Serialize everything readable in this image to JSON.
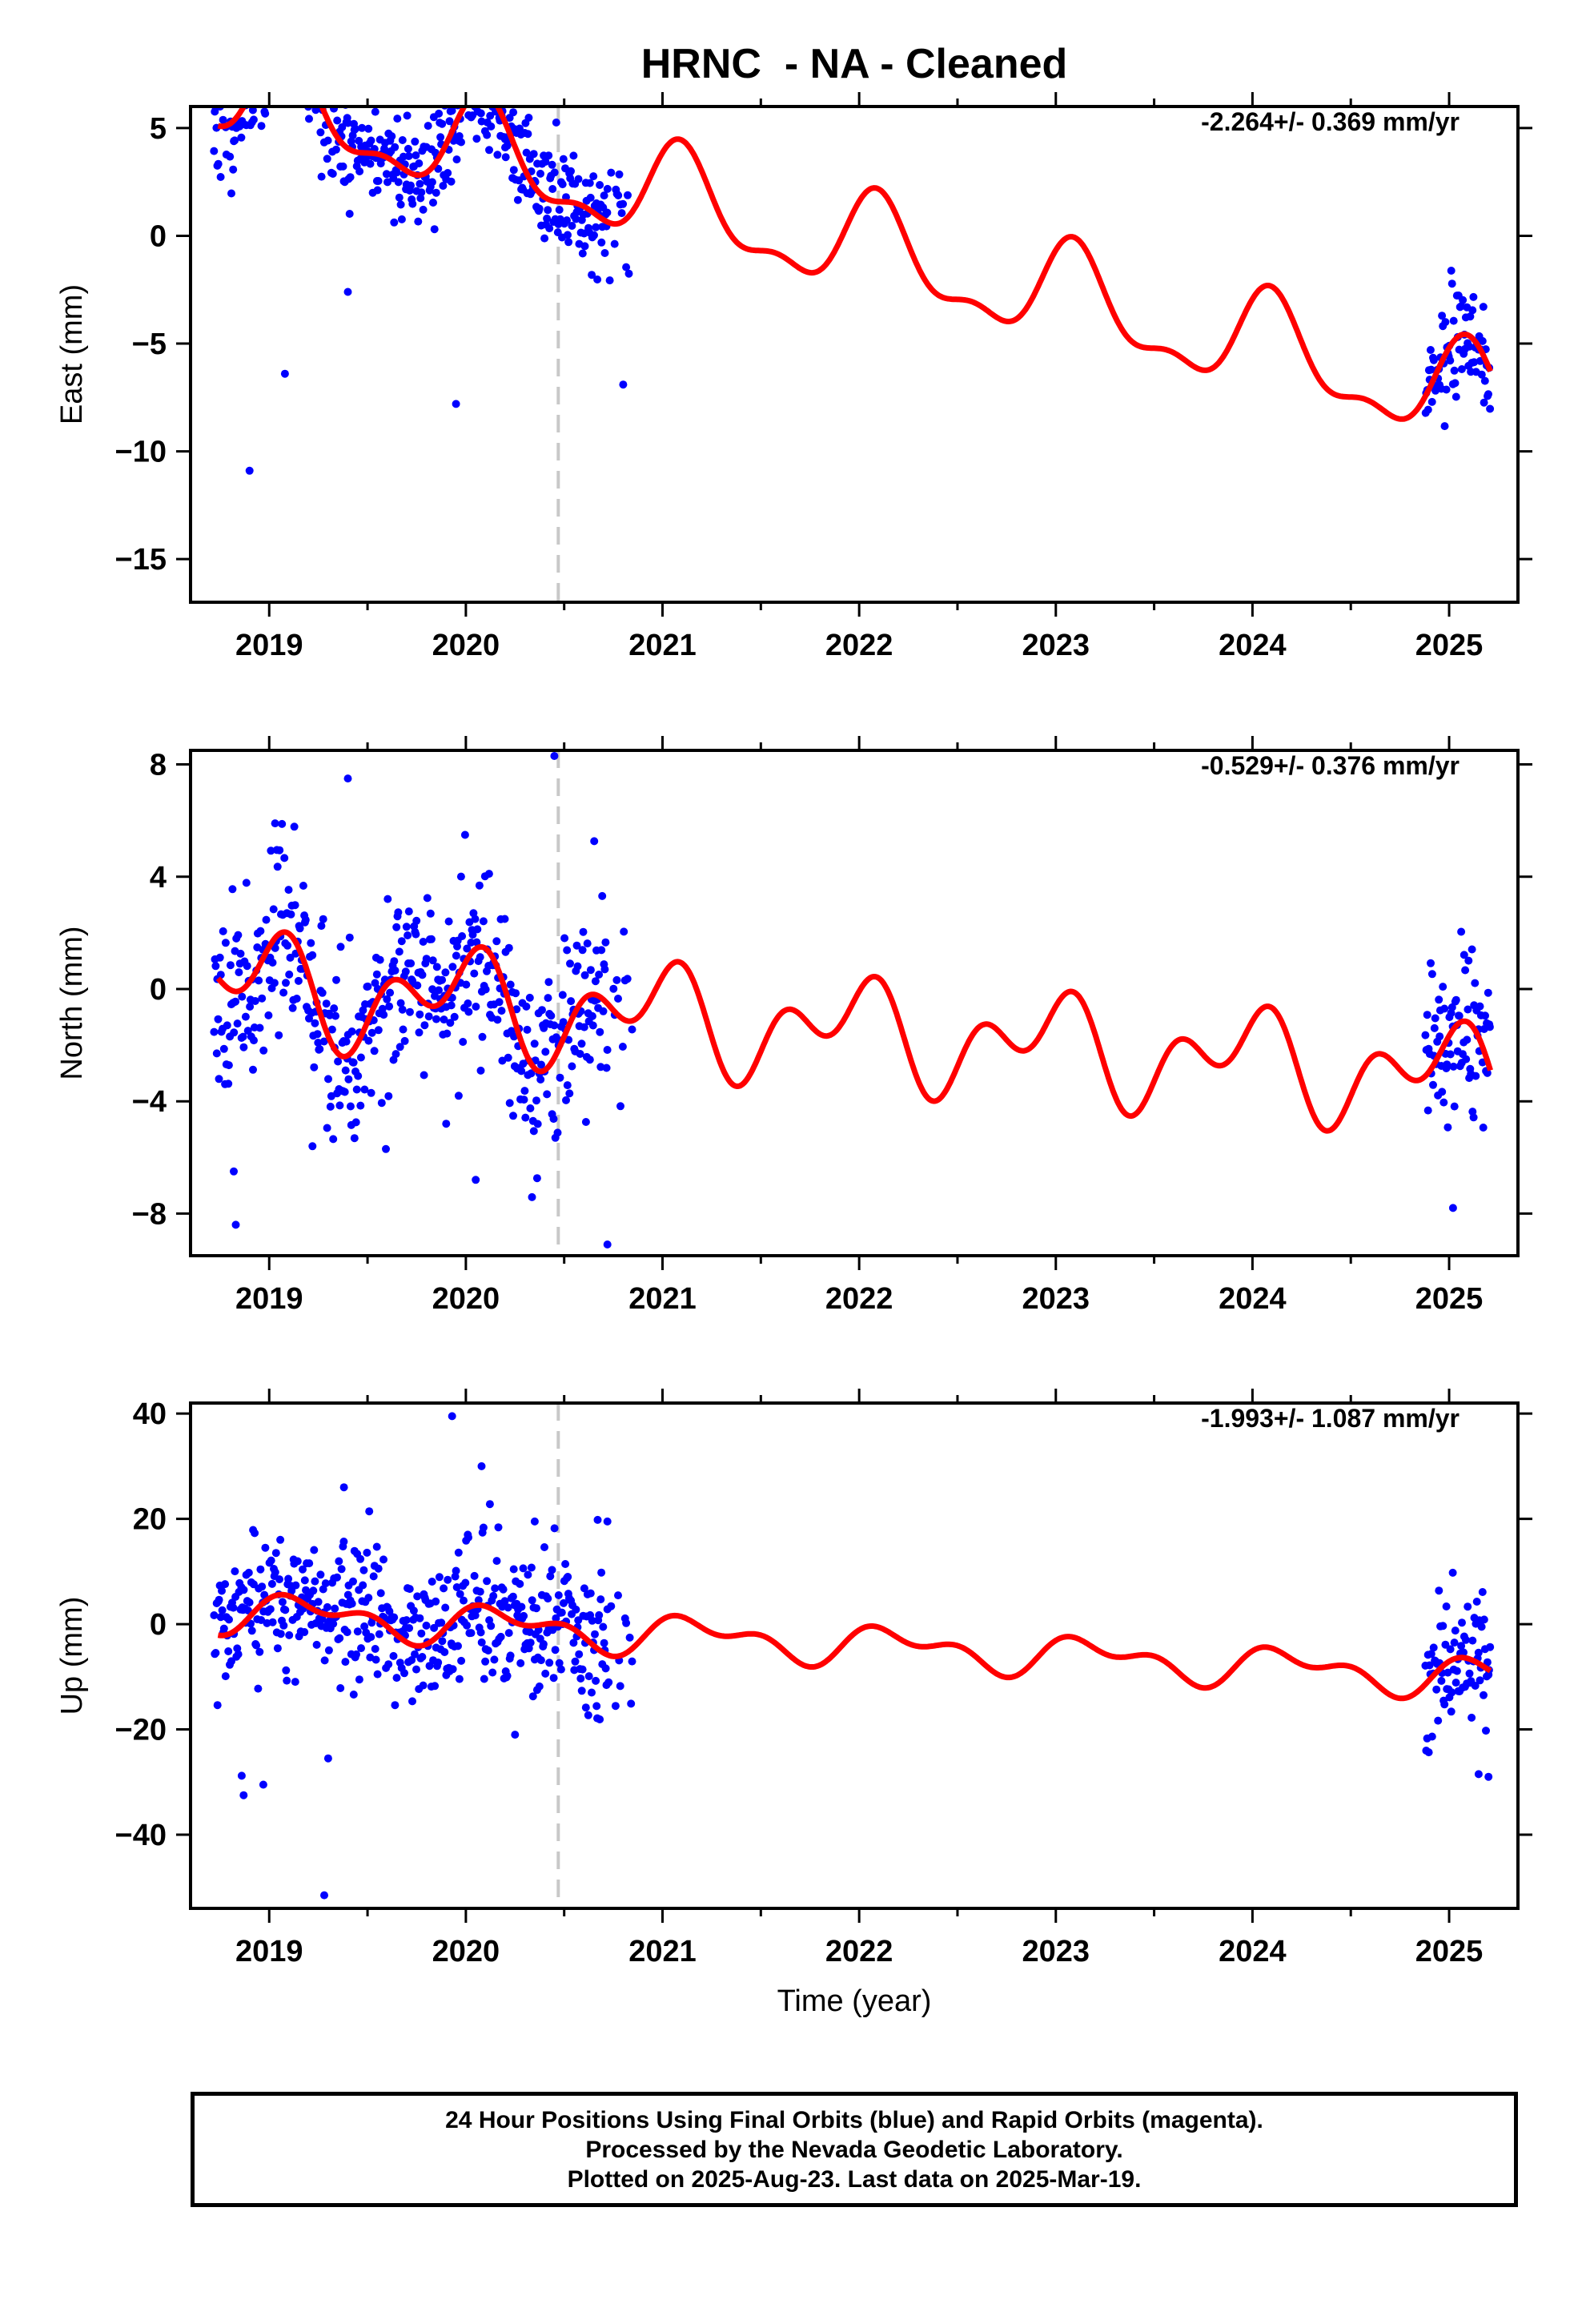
{
  "title": "HRNC  - NA - Cleaned",
  "footer": {
    "line1": "24 Hour Positions Using Final Orbits (blue) and Rapid Orbits (magenta).",
    "line2": "Processed by the Nevada Geodetic Laboratory.",
    "line3": "Plotted on 2025-Aug-23. Last data on 2025-Mar-19."
  },
  "colors": {
    "final_orbits": "#0000ff",
    "model_fit": "#ff0000",
    "event_line": "#c8c8c8"
  },
  "chart_data": [
    {
      "type": "scatter",
      "component": "east",
      "ylabel": "East (mm)",
      "xlabel": "",
      "rate_label": "-2.264+/- 0.369 mm/yr",
      "xlim": [
        2018.6,
        2025.35
      ],
      "ylim": [
        -17,
        6
      ],
      "xticks": [
        "2019",
        "2020",
        "2021",
        "2022",
        "2023",
        "2024",
        "2025"
      ],
      "yticks": [
        {
          "v": 5,
          "t": "5"
        },
        {
          "v": 0,
          "t": "0"
        },
        {
          "v": -5,
          "t": "−5"
        },
        {
          "v": -10,
          "t": "−10"
        },
        {
          "v": -15,
          "t": "−15"
        }
      ],
      "event_line_x": 2020.47,
      "model": {
        "offset": 6.8,
        "rate": -2.264,
        "t0": 2018.74,
        "a1": 2.1,
        "p1": 0.95,
        "a2": 0.9,
        "p2": 0.55
      },
      "scatter": {
        "segments": [
          [
            2018.72,
            2020.72
          ],
          [
            2020.72,
            2020.83
          ],
          [
            2024.88,
            2025.21
          ]
        ],
        "noise": 1.3,
        "seed": 11
      },
      "outliers": [
        [
          2018.9,
          -10.9
        ],
        [
          2019.08,
          -6.4
        ],
        [
          2019.95,
          -7.8
        ],
        [
          2020.8,
          -6.9
        ],
        [
          2019.4,
          -2.6
        ],
        [
          2020.28,
          4.7
        ],
        [
          2020.2,
          4.1
        ]
      ],
      "series": [
        {
          "name": "Final Orbits",
          "role": "observations",
          "color": "#0000ff"
        },
        {
          "name": "Model fit",
          "role": "fit",
          "color": "#ff0000"
        }
      ]
    },
    {
      "type": "scatter",
      "component": "north",
      "ylabel": "North (mm)",
      "xlabel": "",
      "rate_label": "-0.529+/- 0.376 mm/yr",
      "xlim": [
        2018.6,
        2025.35
      ],
      "ylim": [
        -9.5,
        8.5
      ],
      "xticks": [
        "2019",
        "2020",
        "2021",
        "2022",
        "2023",
        "2024",
        "2025"
      ],
      "yticks": [
        {
          "v": 8,
          "t": "8"
        },
        {
          "v": 4,
          "t": "4"
        },
        {
          "v": 0,
          "t": "0"
        },
        {
          "v": -4,
          "t": "−4"
        },
        {
          "v": -8,
          "t": "−8"
        }
      ],
      "event_line_x": 2020.47,
      "model": {
        "offset": 0.2,
        "rate": -0.529,
        "t0": 2018.74,
        "a1": 1.25,
        "p1": 1.85,
        "a2": 1.2,
        "p2": 0.2
      },
      "scatter": {
        "segments": [
          [
            2018.72,
            2020.72
          ],
          [
            2020.72,
            2020.85
          ],
          [
            2024.88,
            2025.21
          ]
        ],
        "noise": 1.6,
        "seed": 23
      },
      "outliers": [
        [
          2018.83,
          -8.4
        ],
        [
          2019.4,
          7.5
        ],
        [
          2020.45,
          8.3
        ],
        [
          2020.72,
          -9.1
        ],
        [
          2020.05,
          -6.8
        ],
        [
          2018.82,
          -6.5
        ],
        [
          2019.03,
          5.9
        ],
        [
          2025.02,
          -7.8
        ],
        [
          2019.9,
          -4.8
        ],
        [
          2019.22,
          -5.6
        ]
      ],
      "series": [
        {
          "name": "Final Orbits",
          "role": "observations",
          "color": "#0000ff"
        },
        {
          "name": "Model fit",
          "role": "fit",
          "color": "#ff0000"
        }
      ]
    },
    {
      "type": "scatter",
      "component": "up",
      "ylabel": "Up (mm)",
      "xlabel": "Time (year)",
      "rate_label": "-1.993+/- 1.087 mm/yr",
      "xlim": [
        2018.6,
        2025.35
      ],
      "ylim": [
        -54,
        42
      ],
      "xticks": [
        "2019",
        "2020",
        "2021",
        "2022",
        "2023",
        "2024",
        "2025"
      ],
      "yticks": [
        {
          "v": 40,
          "t": "40"
        },
        {
          "v": 20,
          "t": "20"
        },
        {
          "v": 0,
          "t": "0"
        },
        {
          "v": -20,
          "t": "−20"
        },
        {
          "v": -40,
          "t": "−40"
        }
      ],
      "event_line_x": 2020.47,
      "model": {
        "offset": 2.5,
        "rate": -1.993,
        "t0": 2018.74,
        "a1": 2.9,
        "p1": 0.35,
        "a2": 2.0,
        "p2": 1.25
      },
      "scatter": {
        "segments": [
          [
            2018.72,
            2020.72
          ],
          [
            2020.72,
            2020.87
          ],
          [
            2024.88,
            2025.21
          ]
        ],
        "noise": 6.5,
        "seed": 37
      },
      "outliers": [
        [
          2019.93,
          39.5
        ],
        [
          2020.08,
          30
        ],
        [
          2019.38,
          26
        ],
        [
          2019.28,
          -51.5
        ],
        [
          2018.87,
          -32.5
        ],
        [
          2018.97,
          -30.5
        ],
        [
          2018.86,
          -28.8
        ],
        [
          2020.35,
          19.5
        ],
        [
          2020.67,
          19.8
        ],
        [
          2020.72,
          19.5
        ],
        [
          2019.3,
          -25.5
        ],
        [
          2025.15,
          -28.5
        ],
        [
          2025.2,
          -29
        ],
        [
          2020.25,
          -21
        ]
      ],
      "series": [
        {
          "name": "Final Orbits",
          "role": "observations",
          "color": "#0000ff"
        },
        {
          "name": "Model fit",
          "role": "fit",
          "color": "#ff0000"
        }
      ]
    }
  ]
}
